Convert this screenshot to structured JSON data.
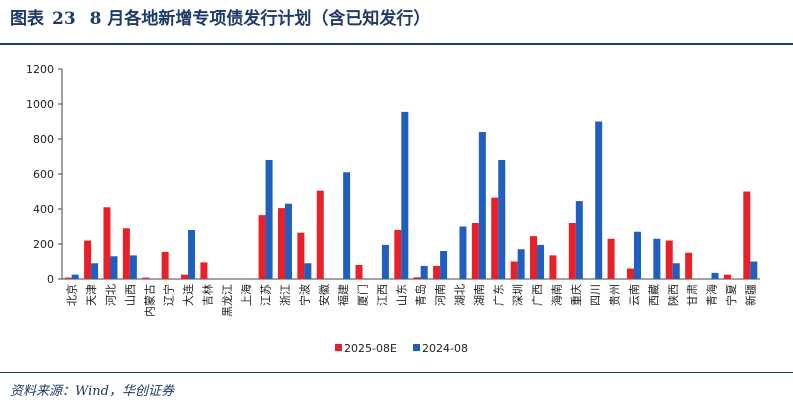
{
  "header": {
    "figure_label": "图表",
    "figure_number": "23",
    "title": "8 月各地新增专项债发行计划（含已知发行）"
  },
  "footer": {
    "source": "资料来源：Wind，华创证券"
  },
  "colors": {
    "series_2025": "#e8202a",
    "series_2024": "#1f5fbf",
    "title": "#1f3a68"
  },
  "chart_data": {
    "type": "bar",
    "title": "8 月各地新增专项债发行计划（含已知发行）",
    "xlabel": "",
    "ylabel": "",
    "ylim": [
      0,
      1200
    ],
    "yticks": [
      0,
      200,
      400,
      600,
      800,
      1000,
      1200
    ],
    "grid": false,
    "legend_position": "bottom",
    "categories": [
      "北京",
      "天津",
      "河北",
      "山西",
      "内蒙古",
      "辽宁",
      "大连",
      "吉林",
      "黑龙江",
      "上海",
      "江苏",
      "浙江",
      "宁波",
      "安徽",
      "福建",
      "厦门",
      "江西",
      "山东",
      "青岛",
      "河南",
      "湖北",
      "湖南",
      "广东",
      "深圳",
      "广西",
      "海南",
      "重庆",
      "四川",
      "贵州",
      "云南",
      "西藏",
      "陕西",
      "甘肃",
      "青海",
      "宁夏",
      "新疆"
    ],
    "series": [
      {
        "name": "2025-08E",
        "values": [
          8,
          220,
          410,
          290,
          8,
          155,
          25,
          95,
          0,
          0,
          365,
          405,
          265,
          505,
          0,
          80,
          0,
          280,
          10,
          75,
          0,
          320,
          465,
          100,
          245,
          135,
          320,
          0,
          230,
          60,
          0,
          220,
          150,
          0,
          25,
          500
        ]
      },
      {
        "name": "2024-08",
        "values": [
          25,
          90,
          130,
          135,
          0,
          0,
          280,
          0,
          0,
          0,
          680,
          430,
          90,
          0,
          610,
          0,
          195,
          955,
          75,
          160,
          300,
          840,
          680,
          170,
          195,
          0,
          445,
          900,
          0,
          270,
          230,
          90,
          0,
          35,
          0,
          100
        ]
      }
    ]
  }
}
